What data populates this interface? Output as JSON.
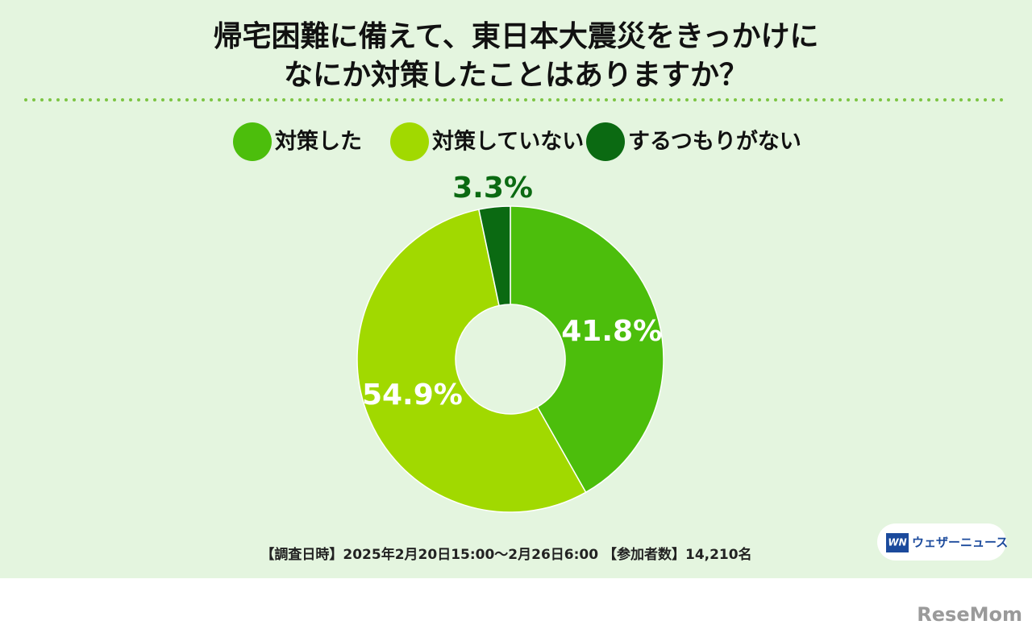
{
  "chart_data": {
    "type": "donut",
    "title": [
      "帰宅困難に備えて、東日本大震災をきっかけに",
      "なにか対策したことはありますか？"
    ],
    "categories": [
      "対策した",
      "対策していない",
      "するつもりがない"
    ],
    "values": [
      41.8,
      54.9,
      3.3
    ],
    "value_labels": [
      "41.8%",
      "54.9%",
      "3.3%"
    ],
    "colors": [
      "#4cbe0c",
      "#a1d900",
      "#0b6a12"
    ]
  },
  "footnote": "【調査日時】2025年2月20日15:00〜2月26日6:00 【参加者数】14,210名",
  "logo": {
    "mark": "WN",
    "text": "ウェザーニュース"
  },
  "watermark": "ReseMom"
}
